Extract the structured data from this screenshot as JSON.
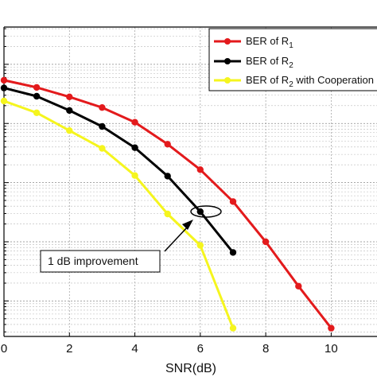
{
  "chart_data": {
    "type": "line",
    "title": "",
    "xlabel": "SNR(dB)",
    "ylabel": "",
    "xlim": [
      0,
      11.4
    ],
    "ylog": true,
    "ylim_log10": [
      -6.6,
      -1.37
    ],
    "grid": true,
    "grid_style": "dotted",
    "x_ticks": [
      0,
      2,
      4,
      6,
      8,
      10
    ],
    "x_tick_labels": [
      "0",
      "2",
      "4",
      "6",
      "8",
      "10"
    ],
    "legend_position": "top-right",
    "series": [
      {
        "name": "BER of R",
        "subscript": "1",
        "color": "#e31a1c",
        "x": [
          0,
          1,
          2,
          3,
          4,
          5,
          6,
          7,
          8,
          9,
          10
        ],
        "log10_y": [
          -2.27,
          -2.39,
          -2.55,
          -2.73,
          -2.98,
          -3.35,
          -3.78,
          -4.32,
          -5.0,
          -5.75,
          -6.46
        ]
      },
      {
        "name": "BER of R",
        "subscript": "2",
        "color": "#000000",
        "x": [
          0,
          1,
          2,
          3,
          4,
          5,
          6,
          7
        ],
        "log10_y": [
          -2.4,
          -2.54,
          -2.78,
          -3.05,
          -3.41,
          -3.89,
          -4.49,
          -5.18
        ]
      },
      {
        "name": "BER of R",
        "subscript": "2",
        "name_suffix": " with Cooperation",
        "color": "#f5f51e",
        "x": [
          0,
          1,
          2,
          3,
          4,
          5,
          6,
          7
        ],
        "log10_y": [
          -2.62,
          -2.82,
          -3.12,
          -3.42,
          -3.88,
          -4.53,
          -5.06,
          -6.46
        ]
      }
    ],
    "annotations": [
      {
        "text": "1 dB improvement"
      }
    ]
  }
}
